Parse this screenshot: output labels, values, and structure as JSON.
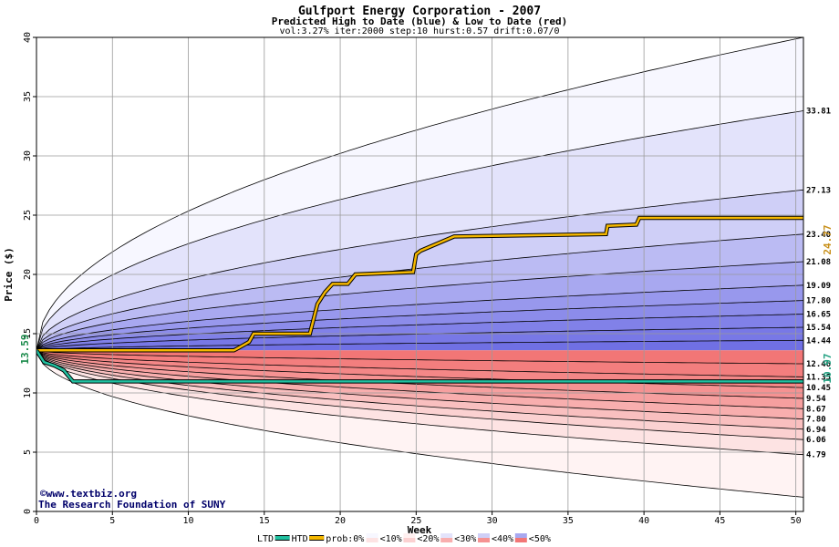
{
  "chart_data": {
    "type": "area",
    "title": "Gulfport Energy Corporation - 2007",
    "subtitle": "Predicted High to Date (blue) &  Low to Date (red)",
    "params": "vol:3.27% iter:2000 step:10 hurst:0.57 drift:0.07/0",
    "xlabel": "Week",
    "ylabel": "Price ($)",
    "xlim": [
      0,
      50.5
    ],
    "ylim": [
      0,
      40
    ],
    "x_ticks": [
      "0",
      "5",
      "10",
      "15",
      "20",
      "25",
      "30",
      "35",
      "40",
      "45",
      "50"
    ],
    "y_ticks": [
      "0",
      "5",
      "10",
      "15",
      "20",
      "25",
      "30",
      "35",
      "40"
    ],
    "start_price": 13.59,
    "start_price_label": "13.59",
    "credit_line1": "©www.textbiz.org",
    "credit_line2": "The Research Foundation of SUNY",
    "high_end_label": "24.77",
    "low_end_label": "10.97",
    "bands_high": [
      {
        "label": "",
        "end": 40.0,
        "fill": "#f7f7ff"
      },
      {
        "label": "33.81",
        "end": 33.81,
        "fill": "#e3e3fb"
      },
      {
        "label": "27.13",
        "end": 27.13,
        "fill": "#cfcff7"
      },
      {
        "label": "23.40",
        "end": 23.4,
        "fill": "#bbbbf3"
      },
      {
        "label": "21.08",
        "end": 21.08,
        "fill": "#a8a8f0"
      },
      {
        "label": "19.09",
        "end": 19.09,
        "fill": "#9898ed"
      },
      {
        "label": "17.80",
        "end": 17.8,
        "fill": "#8c8cea"
      },
      {
        "label": "16.65",
        "end": 16.65,
        "fill": "#8181e8"
      },
      {
        "label": "15.54",
        "end": 15.54,
        "fill": "#7878e6"
      },
      {
        "label": "14.44",
        "end": 14.44,
        "fill": "#7070e4"
      }
    ],
    "bands_low": [
      {
        "label": "",
        "end": 1.2,
        "fill": "#fff3f3"
      },
      {
        "label": "4.79",
        "end": 4.79,
        "fill": "#fde3e3"
      },
      {
        "label": "6.06",
        "end": 6.06,
        "fill": "#fbd1d1"
      },
      {
        "label": "6.94",
        "end": 6.94,
        "fill": "#f9bfbf"
      },
      {
        "label": "7.80",
        "end": 7.8,
        "fill": "#f8aeae"
      },
      {
        "label": "8.67",
        "end": 8.67,
        "fill": "#f69f9f"
      },
      {
        "label": "9.54",
        "end": 9.54,
        "fill": "#f59292"
      },
      {
        "label": "10.45",
        "end": 10.45,
        "fill": "#f48787"
      },
      {
        "label": "11.35",
        "end": 11.35,
        "fill": "#f37e7e"
      },
      {
        "label": "12.46",
        "end": 12.46,
        "fill": "#f27676"
      }
    ],
    "series": [
      {
        "name": "HTD",
        "color": "#f5b800",
        "x": [
          0,
          13,
          13.3,
          14,
          14.3,
          18,
          18.5,
          19,
          19.5,
          20.5,
          21,
          24.8,
          25,
          25.3,
          27.5,
          37.5,
          37.6,
          39.5,
          39.7,
          50.5
        ],
        "y": [
          13.59,
          13.59,
          13.8,
          14.3,
          15.0,
          15.0,
          17.5,
          18.5,
          19.2,
          19.2,
          20.0,
          20.2,
          21.7,
          22.0,
          23.2,
          23.4,
          24.1,
          24.2,
          24.77,
          24.77
        ]
      },
      {
        "name": "LTD",
        "color": "#20c0a0",
        "x": [
          0,
          0.5,
          1.2,
          1.8,
          2.4,
          50.5
        ],
        "y": [
          13.59,
          12.6,
          12.3,
          11.9,
          10.97,
          10.97
        ]
      }
    ],
    "legend": {
      "items": [
        "LTD",
        "HTD",
        "prob:0%",
        "<10%",
        "<20%",
        "<30%",
        "<40%",
        "<50%"
      ],
      "ltd_color": "#20c0a0",
      "htd_color": "#f5b800",
      "prob_colors": [
        "#f7f7ff",
        "#fff0f0",
        "#e3e3fb",
        "#cfcff7",
        "#a8a8f0",
        "#8080e8"
      ],
      "prob_colors_low": [
        "#ffffff",
        "#fde3e3",
        "#fbd1d1",
        "#f8aeae",
        "#f59292",
        "#f27676"
      ]
    }
  }
}
